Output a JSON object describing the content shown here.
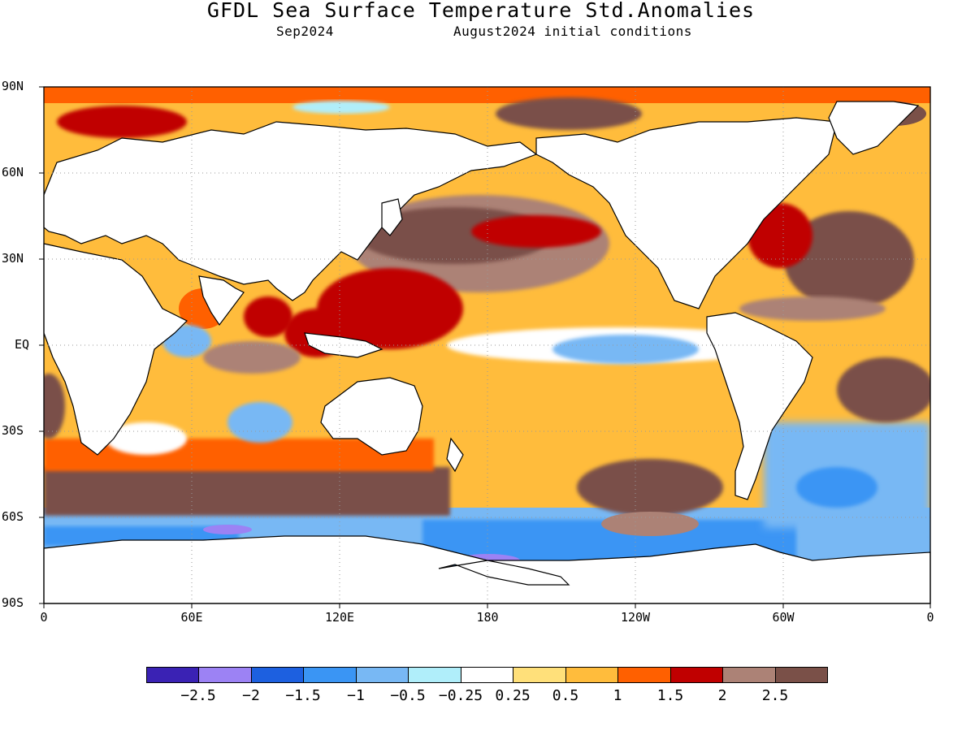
{
  "header": {
    "title": "GFDL Sea Surface Temperature Std.Anomalies",
    "target_month": "Sep2024",
    "init": "August2024 initial conditions"
  },
  "map": {
    "lat_labels": [
      "90N",
      "60N",
      "30N",
      "EQ",
      "30S",
      "60S",
      "90S"
    ],
    "lon_labels": [
      "0",
      "60E",
      "120E",
      "180",
      "120W",
      "60W",
      "0"
    ],
    "land_color": "#ffffff",
    "ocean_pattern": "warm anomalies dominate; cool tongue in eastern equatorial Pacific; cold anomalies near Antarctica"
  },
  "colorbar": {
    "colors": [
      "#3a22b4",
      "#9c82f4",
      "#1d60e0",
      "#3a95f4",
      "#78b8f4",
      "#b0eefa",
      "#ffffff",
      "#ffe07a",
      "#ffbc3c",
      "#ff6000",
      "#c00000",
      "#ac8276",
      "#7a5048"
    ],
    "labels": [
      "−2.5",
      "−2",
      "−1.5",
      "−1",
      "−0.5",
      "−0.25",
      "0.25",
      "0.5",
      "1",
      "1.5",
      "2",
      "2.5"
    ]
  }
}
